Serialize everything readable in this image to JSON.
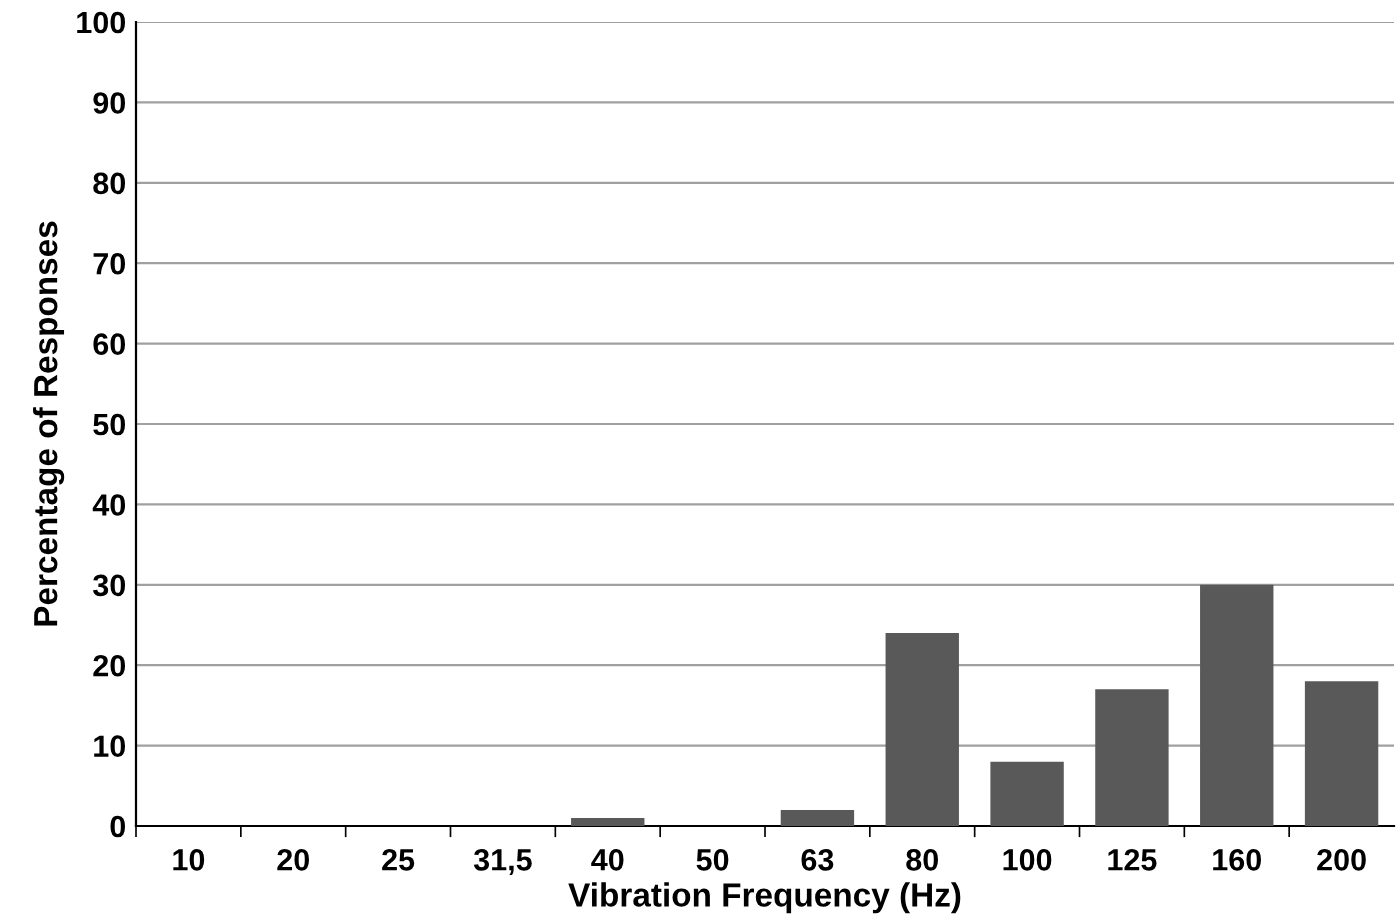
{
  "chart_data": {
    "type": "bar",
    "xlabel": "Vibration Frequency (Hz)",
    "ylabel": "Percentage of Responses",
    "categories": [
      "10",
      "20",
      "25",
      "31,5",
      "40",
      "50",
      "63",
      "80",
      "100",
      "125",
      "160",
      "200"
    ],
    "values": [
      0,
      0,
      0,
      0,
      1,
      0,
      2,
      24,
      8,
      17,
      30,
      18
    ],
    "color": "#595959",
    "ylim": [
      0,
      100
    ],
    "yticks": [
      0,
      10,
      20,
      30,
      40,
      50,
      60,
      70,
      80,
      90,
      100
    ],
    "grid": "y",
    "legend": false
  }
}
